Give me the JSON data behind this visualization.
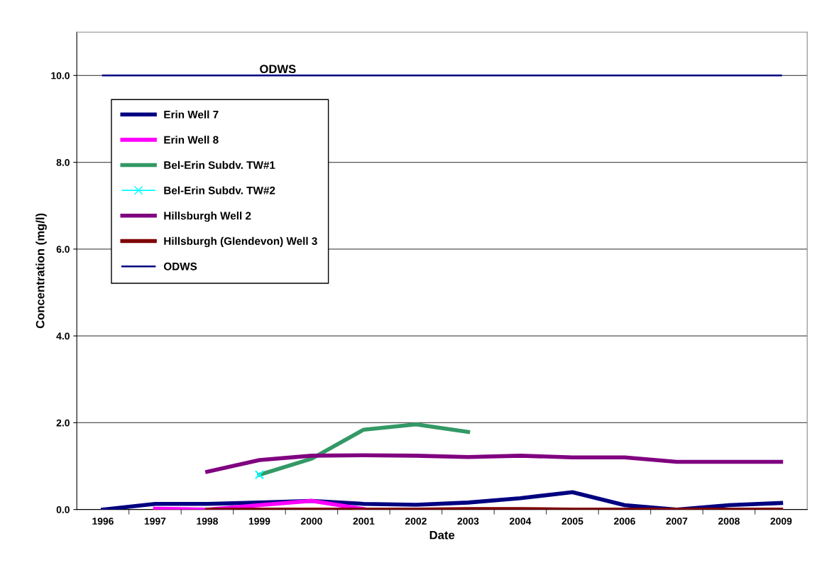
{
  "chart_data": {
    "type": "line",
    "xlabel": "Date",
    "ylabel": "Concentration (mg/l)",
    "categories": [
      "1996",
      "1997",
      "1998",
      "1999",
      "2000",
      "2001",
      "2002",
      "2003",
      "2004",
      "2005",
      "2006",
      "2007",
      "2008",
      "2009"
    ],
    "series": [
      {
        "name": "Erin Well 7",
        "color": "#000080",
        "values": [
          0.0,
          0.13,
          0.13,
          0.16,
          0.2,
          0.13,
          0.11,
          0.16,
          0.26,
          0.4,
          0.1,
          0.0,
          0.1,
          0.15
        ]
      },
      {
        "name": "Erin Well 8",
        "color": "#ff00ff",
        "values": [
          null,
          0.02,
          0.0,
          0.1,
          0.2,
          0.01,
          null,
          null,
          null,
          null,
          null,
          null,
          null,
          null
        ]
      },
      {
        "name": "Bel-Erin Subdv. TW#1",
        "color": "#339966",
        "values": [
          null,
          null,
          null,
          0.8,
          1.17,
          1.84,
          1.96,
          1.79,
          null,
          null,
          null,
          null,
          null,
          null
        ]
      },
      {
        "name": "Bel-Erin Subdv. TW#2",
        "color": "#00ffff",
        "marker": "cross",
        "values": [
          null,
          null,
          null,
          0.8,
          null,
          null,
          null,
          null,
          null,
          null,
          null,
          null,
          null,
          null
        ]
      },
      {
        "name": "Hillsburgh Well 2",
        "color": "#800080",
        "values": [
          null,
          null,
          0.87,
          1.14,
          1.24,
          1.25,
          1.24,
          1.21,
          1.24,
          1.2,
          1.2,
          1.1,
          1.1,
          1.1
        ]
      },
      {
        "name": "Hillsburgh (Glendevon) Well 3",
        "color": "#800000",
        "values": [
          null,
          null,
          0.0,
          0.0,
          0.0,
          0.0,
          0.0,
          0.01,
          0.01,
          0.0,
          0.0,
          0.0,
          0.0,
          0.0
        ]
      },
      {
        "name": "ODWS",
        "color": "#000080",
        "values": [
          10,
          10,
          10,
          10,
          10,
          10,
          10,
          10,
          10,
          10,
          10,
          10,
          10,
          10
        ]
      }
    ],
    "annotations": [
      {
        "text": "ODWS",
        "x": "1999",
        "y": 10
      }
    ],
    "ylim": [
      0,
      11
    ],
    "yticks": [
      {
        "value": 0,
        "label": "0.0"
      },
      {
        "value": 2,
        "label": "2.0"
      },
      {
        "value": 4,
        "label": "4.0"
      },
      {
        "value": 6,
        "label": "6.0"
      },
      {
        "value": 8,
        "label": "8.0"
      },
      {
        "value": 10,
        "label": "10.0"
      }
    ],
    "grid": "y",
    "legend": "top left"
  }
}
